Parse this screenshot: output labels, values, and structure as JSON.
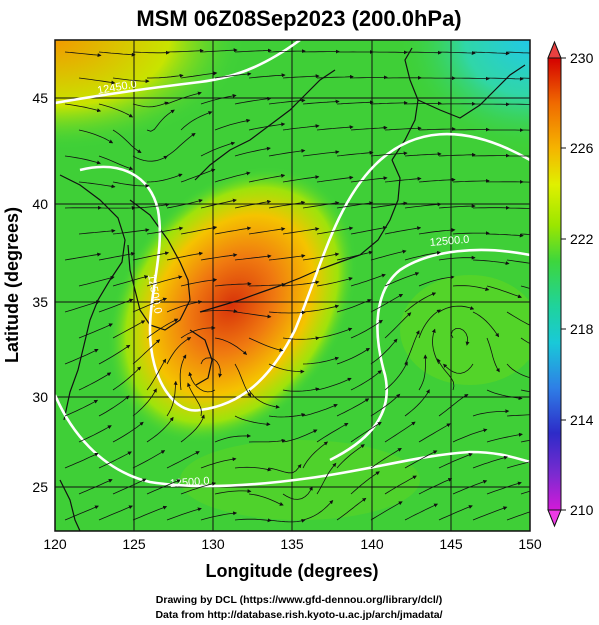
{
  "title": "MSM 06Z08Sep2023 (200.0hPa)",
  "xlabel": "Longitude (degrees)",
  "ylabel": "Latitude  (degrees)",
  "footer_lines": [
    "Drawing by DCL (https://www.gfd-dennou.org/library/dcl/)",
    "Data from http://database.rish.kyoto-u.ac.jp/arch/jmadata/"
  ],
  "x_ticks": [
    "120",
    "125",
    "130",
    "135",
    "140",
    "145",
    "150"
  ],
  "y_ticks": [
    "25",
    "30",
    "35",
    "40",
    "45"
  ],
  "colorbar": {
    "ticks": [
      "230",
      "226",
      "222",
      "218",
      "214",
      "210"
    ],
    "colors": [
      "#d40000",
      "#f06a00",
      "#f5b400",
      "#e0f000",
      "#9be600",
      "#3dd63d",
      "#1fd39c",
      "#19c9d8",
      "#2e7fe6",
      "#2d2bc8",
      "#7a2bd0",
      "#d31ad8"
    ]
  },
  "contour_labels": [
    "12450.0",
    "12500.0",
    "12500.0",
    "12500.0"
  ],
  "colors": {
    "field_base": "#35cc36",
    "warm_core": "#e25a18",
    "warm_core_mid": "#f4a400",
    "cool_corner": "#25d3c6",
    "contour": "#ffffff",
    "streamline": "#111111"
  }
}
